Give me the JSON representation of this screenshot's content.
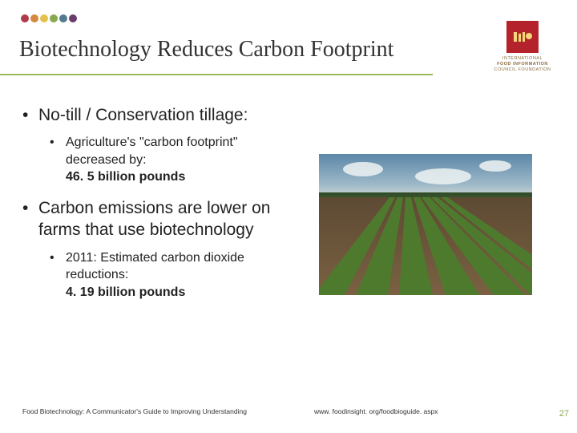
{
  "dots_colors": [
    "#b23b4a",
    "#d38a3e",
    "#e3c14a",
    "#8aa84e",
    "#527b8f",
    "#6a3d6e"
  ],
  "title": "Biotechnology Reduces Carbon Footprint",
  "logo": {
    "line1": "INTERNATIONAL",
    "line2": "FOOD INFORMATION",
    "line3": "COUNCIL FOUNDATION"
  },
  "bullets": {
    "b1a": "No-till / Conservation tillage:",
    "b2a_1": "Agriculture's \"carbon footprint\" decreased by:",
    "b2a_2": "46. 5 billion pounds",
    "b1b": "Carbon emissions are lower on farms that use biotechnology",
    "b2b_1": "2011: Estimated carbon dioxide reductions:",
    "b2b_2": "4. 19 billion pounds"
  },
  "footer": {
    "left": "Food Biotechnology: A Communicator's Guide to Improving Understanding",
    "mid": "www. foodinsight. org/foodbioguide. aspx",
    "page": "27"
  },
  "image": {
    "desc": "crop-field-photo",
    "sky_color": "#5b87a8",
    "ground_color": "#6a5338",
    "row_color": "#4e7a2e"
  }
}
